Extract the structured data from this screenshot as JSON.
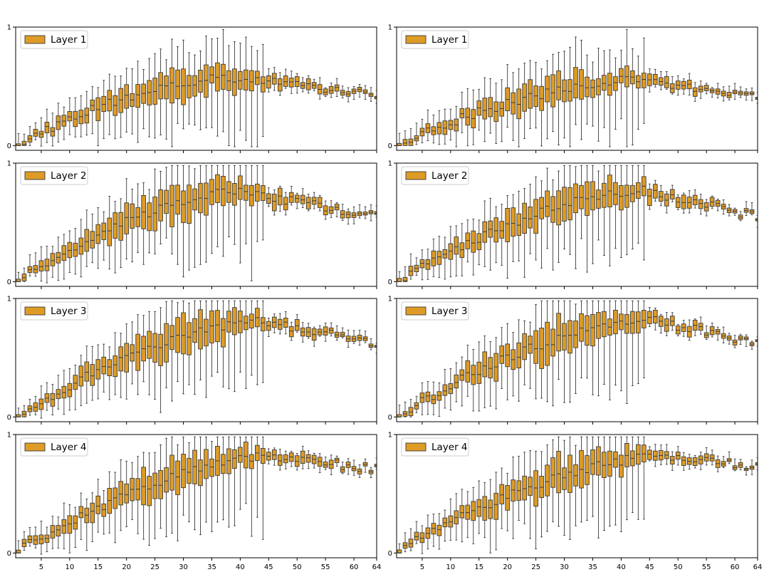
{
  "figure": {
    "box_color": "#DE9B25",
    "edge_color": "#3a3a3a",
    "frame_color": "#000000"
  },
  "chart_data": {
    "type": "box",
    "layout": "4 rows x 2 columns of box-plot panels",
    "x": {
      "positions_start": 1,
      "positions_end": 64,
      "xlim": [
        0.5,
        64
      ],
      "tick_values": [
        5,
        10,
        15,
        20,
        25,
        30,
        35,
        40,
        45,
        50,
        55,
        60,
        64
      ],
      "tick_labels": [
        "5",
        "10",
        "15",
        "20",
        "25",
        "30",
        "35",
        "40",
        "45",
        "50",
        "55",
        "60",
        "64"
      ]
    },
    "y": {
      "ylim": [
        -0.04,
        1.0
      ],
      "tick_values": [
        0,
        1
      ],
      "tick_labels": [
        "0",
        "1"
      ]
    },
    "panels": [
      {
        "legend": "Layer 1",
        "peak": 0.58,
        "peak_at": 38,
        "spread": 0.52,
        "box_scale": 0.9,
        "end_value": 0.42,
        "seed": 11
      },
      {
        "legend": "Layer 1",
        "peak": 0.55,
        "peak_at": 42,
        "spread": 0.55,
        "box_scale": 0.85,
        "end_value": 0.42,
        "seed": 23
      },
      {
        "legend": "Layer 2",
        "peak": 0.76,
        "peak_at": 40,
        "spread": 0.62,
        "box_scale": 1.0,
        "end_value": 0.55,
        "seed": 37
      },
      {
        "legend": "Layer 2",
        "peak": 0.77,
        "peak_at": 44,
        "spread": 0.62,
        "box_scale": 1.0,
        "end_value": 0.55,
        "seed": 41
      },
      {
        "legend": "Layer 3",
        "peak": 0.8,
        "peak_at": 44,
        "spread": 0.62,
        "box_scale": 1.0,
        "end_value": 0.63,
        "seed": 53
      },
      {
        "legend": "Layer 3",
        "peak": 0.82,
        "peak_at": 45,
        "spread": 0.6,
        "box_scale": 1.0,
        "end_value": 0.63,
        "seed": 67
      },
      {
        "legend": "Layer 4",
        "peak": 0.82,
        "peak_at": 46,
        "spread": 0.62,
        "box_scale": 0.95,
        "end_value": 0.7,
        "seed": 71
      },
      {
        "legend": "Layer 4",
        "peak": 0.82,
        "peak_at": 47,
        "spread": 0.62,
        "box_scale": 0.95,
        "end_value": 0.72,
        "seed": 89
      }
    ]
  }
}
